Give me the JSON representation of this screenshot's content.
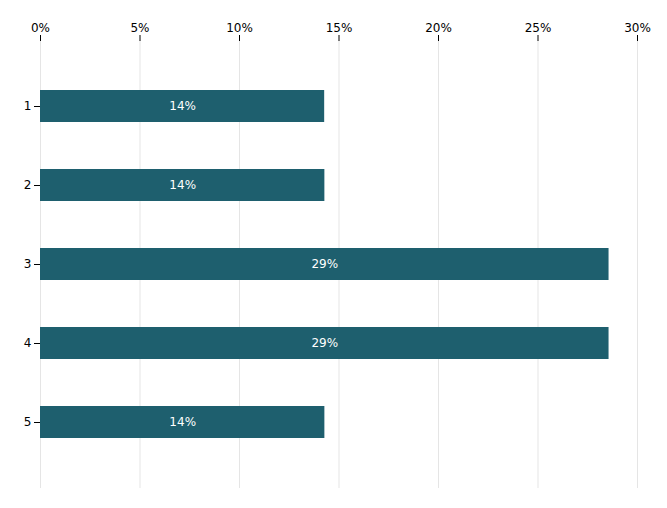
{
  "chart_data": {
    "type": "bar",
    "orientation": "horizontal",
    "categories": [
      "1",
      "2",
      "3",
      "4",
      "5"
    ],
    "values": [
      14.28,
      14.29,
      28.57,
      28.57,
      14.29
    ],
    "value_labels": [
      "14%",
      "14%",
      "29%",
      "29%",
      "14%"
    ],
    "data_labels": true,
    "color": "#1e5f6e",
    "xlim": [
      0,
      30
    ],
    "xticks": [
      {
        "value": 0,
        "label": "0%"
      },
      {
        "value": 5,
        "label": "5%"
      },
      {
        "value": 10,
        "label": "10%"
      },
      {
        "value": 15,
        "label": "15%"
      },
      {
        "value": 20,
        "label": "20%"
      },
      {
        "value": 25,
        "label": "25%"
      },
      {
        "value": 30,
        "label": "30%"
      }
    ],
    "grid": true
  }
}
